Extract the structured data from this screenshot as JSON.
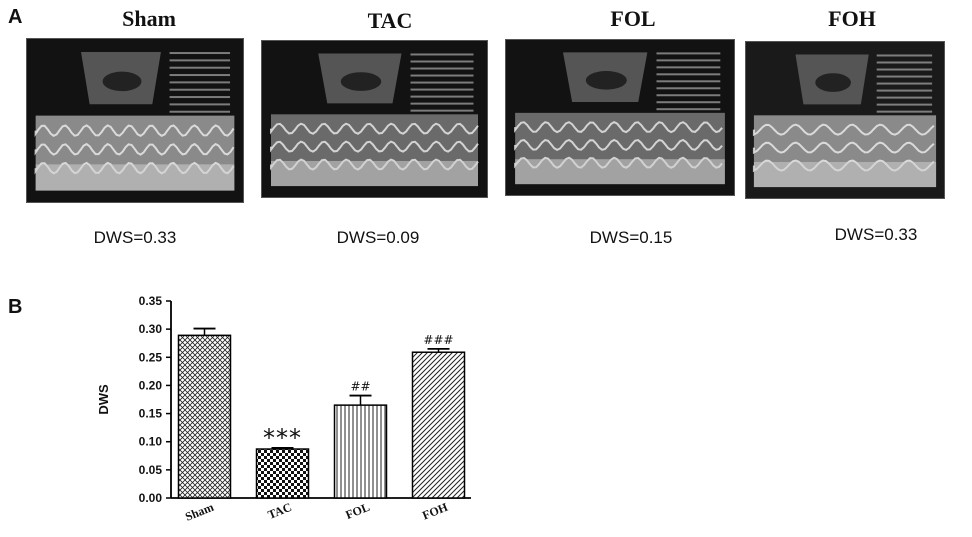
{
  "panel_a": {
    "letter": "A",
    "groups": [
      {
        "title": "Sham",
        "dws_text": "DWS=0.33"
      },
      {
        "title": "TAC",
        "dws_text": "DWS=0.09"
      },
      {
        "title": "FOL",
        "dws_text": "DWS=0.15"
      },
      {
        "title": "FOH",
        "dws_text": "DWS=0.33"
      }
    ]
  },
  "panel_b": {
    "letter": "B"
  },
  "chart_data": {
    "type": "bar",
    "title": "",
    "xlabel": "",
    "ylabel": "DWS",
    "ylim": [
      0,
      0.35
    ],
    "yticks": [
      0.0,
      0.05,
      0.1,
      0.15,
      0.2,
      0.25,
      0.3,
      0.35
    ],
    "ytick_labels": [
      "0.00",
      "0.05",
      "0.10",
      "0.15",
      "0.20",
      "0.25",
      "0.30",
      "0.35"
    ],
    "categories": [
      "Sham",
      "TAC",
      "FOL",
      "FOH"
    ],
    "values": [
      0.289,
      0.087,
      0.165,
      0.259
    ],
    "errors": [
      0.012,
      0.002,
      0.017,
      0.006
    ],
    "annotations": [
      "",
      "***",
      "##",
      "###"
    ],
    "patterns": [
      "crosshatch",
      "checker",
      "vertical",
      "diagonal"
    ]
  }
}
